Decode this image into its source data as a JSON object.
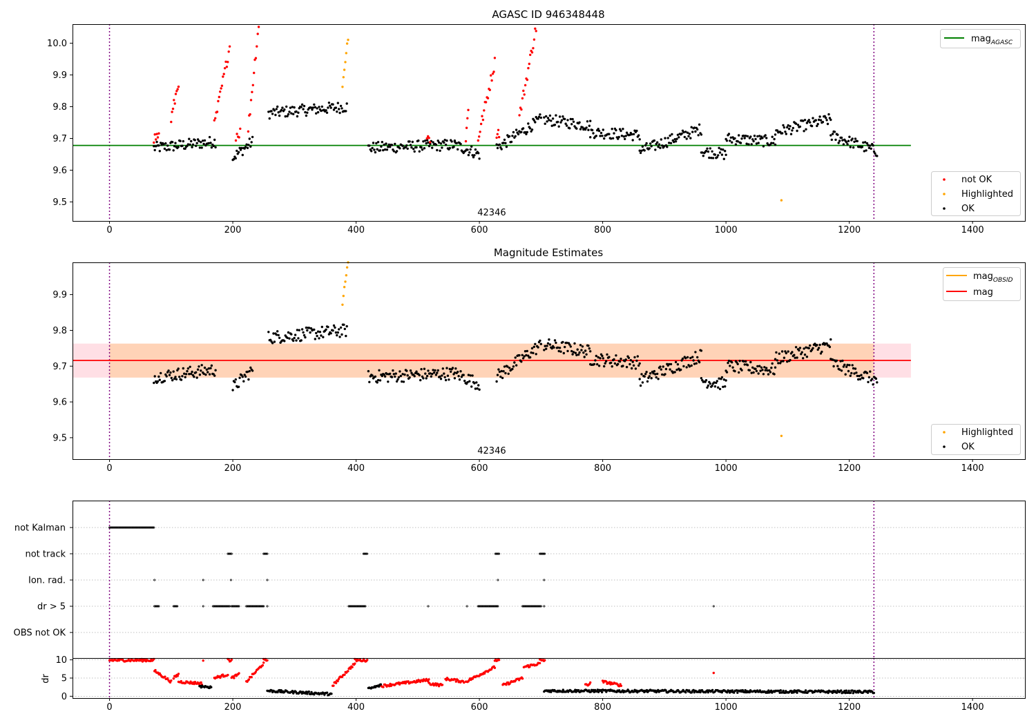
{
  "chart_data": [
    {
      "type": "scatter",
      "title": "AGASC ID 946348448",
      "xlim": [
        -60,
        1485
      ],
      "ylim": [
        9.44,
        10.06
      ],
      "x_ticks": [
        0,
        200,
        400,
        600,
        800,
        1000,
        1200,
        1400
      ],
      "y_ticks": [
        9.5,
        9.6,
        9.7,
        9.8,
        9.9,
        10.0
      ],
      "y_tick_labels": [
        "9.5",
        "9.6",
        "9.7",
        "9.8",
        "9.9",
        "10.0"
      ],
      "obsid_label": "42346",
      "obsid_label_x": 620,
      "vlines_x": [
        0,
        1240
      ],
      "hline": {
        "name": "mag_AGASC",
        "y": 9.678,
        "x_range": [
          -60,
          1300
        ],
        "color": "#008000"
      },
      "legend_lines": [
        {
          "label": "mag",
          "sub": "AGASC",
          "color": "#008000"
        }
      ],
      "legend_points": [
        {
          "label": "not OK",
          "color": "#ff0000"
        },
        {
          "label": "Highlighted",
          "color": "#ffa500"
        },
        {
          "label": "OK",
          "color": "#000000"
        }
      ],
      "series": [
        {
          "name": "OK",
          "color": "#000000",
          "segments": [
            {
              "x": [
                72,
                172
              ],
              "y0": 9.67,
              "y1": 9.69
            },
            {
              "x": [
                200,
                232
              ],
              "y0": 9.64,
              "y1": 9.69
            },
            {
              "x": [
                258,
                385
              ],
              "y0": 9.78,
              "y1": 9.8
            },
            {
              "x": [
                420,
                560
              ],
              "y0": 9.67,
              "y1": 9.68
            },
            {
              "x": [
                560,
                600
              ],
              "y0": 9.68,
              "y1": 9.65
            },
            {
              "x": [
                628,
                700
              ],
              "y0": 9.67,
              "y1": 9.76
            },
            {
              "x": [
                705,
                780
              ],
              "y0": 9.76,
              "y1": 9.74
            },
            {
              "x": [
                780,
                860
              ],
              "y0": 9.72,
              "y1": 9.71
            },
            {
              "x": [
                860,
                960
              ],
              "y0": 9.66,
              "y1": 9.73
            },
            {
              "x": [
                960,
                1000
              ],
              "y0": 9.66,
              "y1": 9.65
            },
            {
              "x": [
                1000,
                1080
              ],
              "y0": 9.7,
              "y1": 9.69
            },
            {
              "x": [
                1080,
                1170
              ],
              "y0": 9.72,
              "y1": 9.76
            },
            {
              "x": [
                1170,
                1245
              ],
              "y0": 9.71,
              "y1": 9.66
            }
          ]
        },
        {
          "name": "not OK",
          "color": "#ff0000",
          "segments": [
            {
              "x": [
                72,
                80
              ],
              "y0": 9.7,
              "y1": 9.71
            },
            {
              "x": [
                100,
                112
              ],
              "y0": 9.76,
              "y1": 9.88
            },
            {
              "x": [
                170,
                195
              ],
              "y0": 9.74,
              "y1": 9.99
            },
            {
              "x": [
                205,
                212
              ],
              "y0": 9.71,
              "y1": 9.72
            },
            {
              "x": [
                225,
                242
              ],
              "y0": 9.73,
              "y1": 10.06
            },
            {
              "x": [
                515,
                520
              ],
              "y0": 9.7,
              "y1": 9.7
            },
            {
              "x": [
                578,
                582
              ],
              "y0": 9.7,
              "y1": 9.79
            },
            {
              "x": [
                598,
                625
              ],
              "y0": 9.7,
              "y1": 9.94
            },
            {
              "x": [
                628,
                632
              ],
              "y0": 9.72,
              "y1": 9.72
            },
            {
              "x": [
                665,
                692
              ],
              "y0": 9.77,
              "y1": 10.05
            }
          ]
        },
        {
          "name": "Highlighted",
          "color": "#ffa500",
          "segments": [
            {
              "x": [
                378,
                387
              ],
              "y0": 9.86,
              "y1": 10.01
            },
            {
              "x": [
                1090,
                1090
              ],
              "y0": 9.505,
              "y1": 9.505
            }
          ]
        }
      ]
    },
    {
      "type": "scatter",
      "title": "Magnitude Estimates",
      "xlim": [
        -60,
        1485
      ],
      "ylim": [
        9.44,
        9.99
      ],
      "x_ticks": [
        0,
        200,
        400,
        600,
        800,
        1000,
        1200,
        1400
      ],
      "y_ticks": [
        9.5,
        9.6,
        9.7,
        9.8,
        9.9
      ],
      "y_tick_labels": [
        "9.5",
        "9.6",
        "9.7",
        "9.8",
        "9.9"
      ],
      "obsid_label": "42346",
      "obsid_label_x": 620,
      "vlines_x": [
        0,
        1240
      ],
      "mag_band": {
        "x_range": [
          -60,
          1300
        ],
        "y": [
          9.668,
          9.763
        ],
        "color": "#ffc0cb"
      },
      "mag_obsid_band": {
        "x_range": [
          0,
          1240
        ],
        "y": [
          9.668,
          9.763
        ],
        "color": "#ffa500"
      },
      "hline": {
        "name": "mag",
        "y": 9.716,
        "x_range": [
          -60,
          1300
        ],
        "color": "#ff0000"
      },
      "legend_lines": [
        {
          "label": "mag",
          "sub": "OBSID",
          "color": "#ffa500"
        },
        {
          "label": "mag",
          "sub": "",
          "color": "#ff0000"
        }
      ],
      "legend_points": [
        {
          "label": "Highlighted",
          "color": "#ffa500"
        },
        {
          "label": "OK",
          "color": "#000000"
        }
      ],
      "series": [
        {
          "name": "OK",
          "color": "#000000",
          "segments": [
            {
              "x": [
                72,
                172
              ],
              "y0": 9.67,
              "y1": 9.69
            },
            {
              "x": [
                200,
                232
              ],
              "y0": 9.64,
              "y1": 9.69
            },
            {
              "x": [
                258,
                385
              ],
              "y0": 9.78,
              "y1": 9.8
            },
            {
              "x": [
                420,
                560
              ],
              "y0": 9.67,
              "y1": 9.68
            },
            {
              "x": [
                560,
                600
              ],
              "y0": 9.68,
              "y1": 9.65
            },
            {
              "x": [
                628,
                700
              ],
              "y0": 9.67,
              "y1": 9.76
            },
            {
              "x": [
                705,
                780
              ],
              "y0": 9.76,
              "y1": 9.74
            },
            {
              "x": [
                780,
                860
              ],
              "y0": 9.72,
              "y1": 9.71
            },
            {
              "x": [
                860,
                960
              ],
              "y0": 9.66,
              "y1": 9.73
            },
            {
              "x": [
                960,
                1000
              ],
              "y0": 9.66,
              "y1": 9.65
            },
            {
              "x": [
                1000,
                1080
              ],
              "y0": 9.7,
              "y1": 9.69
            },
            {
              "x": [
                1080,
                1170
              ],
              "y0": 9.72,
              "y1": 9.76
            },
            {
              "x": [
                1170,
                1245
              ],
              "y0": 9.71,
              "y1": 9.66
            }
          ]
        },
        {
          "name": "Highlighted",
          "color": "#ffa500",
          "segments": [
            {
              "x": [
                378,
                387
              ],
              "y0": 9.86,
              "y1": 9.99
            },
            {
              "x": [
                1090,
                1090
              ],
              "y0": 9.505,
              "y1": 9.505
            }
          ]
        }
      ]
    },
    {
      "type": "scatter",
      "title": "",
      "xlim": [
        -60,
        1485
      ],
      "categories": [
        "not Kalman",
        "not track",
        "Ion. rad.",
        "dr > 5",
        "OBS not OK"
      ],
      "vlines_x": [
        0,
        1240
      ],
      "flags": [
        {
          "category": "not Kalman",
          "ranges": [
            [
              0,
              72
            ]
          ]
        },
        {
          "category": "not track",
          "ranges": [
            [
              192,
              198
            ],
            [
              250,
              256
            ],
            [
              412,
              418
            ],
            [
              626,
              632
            ],
            [
              698,
              706
            ]
          ]
        },
        {
          "category": "Ion. rad.",
          "ranges": [
            [
              73,
              73
            ],
            [
              152,
              152
            ],
            [
              197,
              197
            ],
            [
              256,
              256
            ],
            [
              630,
              630
            ],
            [
              705,
              705
            ]
          ]
        },
        {
          "category": "dr > 5",
          "ranges": [
            [
              73,
              80
            ],
            [
              104,
              110
            ],
            [
              152,
              152
            ],
            [
              168,
              195
            ],
            [
              198,
              210
            ],
            [
              222,
              250
            ],
            [
              256,
              256
            ],
            [
              388,
              415
            ],
            [
              517,
              517
            ],
            [
              580,
              580
            ],
            [
              598,
              630
            ],
            [
              670,
              700
            ],
            [
              705,
              705
            ],
            [
              980,
              980
            ]
          ]
        },
        {
          "category": "OBS not OK",
          "ranges": []
        }
      ]
    },
    {
      "type": "scatter",
      "title": "",
      "ylabel": "dr",
      "xlim": [
        -60,
        1485
      ],
      "ylim": [
        -0.5,
        10.5
      ],
      "x_ticks": [
        0,
        200,
        400,
        600,
        800,
        1000,
        1200,
        1400
      ],
      "y_ticks": [
        0,
        5,
        10
      ],
      "y_tick_labels": [
        "0",
        "5",
        "10"
      ],
      "vlines_x": [
        0,
        1240
      ],
      "series": [
        {
          "name": "dr (flagged)",
          "color": "#ff0000",
          "segments": [
            {
              "x": [
                0,
                72
              ],
              "y0": 9.9,
              "y1": 9.9
            },
            {
              "x": [
                73,
                100
              ],
              "y0": 7,
              "y1": 4
            },
            {
              "x": [
                104,
                112
              ],
              "y0": 5,
              "y1": 6
            },
            {
              "x": [
                112,
                150
              ],
              "y0": 4,
              "y1": 3.5
            },
            {
              "x": [
                152,
                152
              ],
              "y0": 9.8,
              "y1": 9.8
            },
            {
              "x": [
                170,
                192
              ],
              "y0": 5,
              "y1": 6
            },
            {
              "x": [
                192,
                198
              ],
              "y0": 9.9,
              "y1": 9.9
            },
            {
              "x": [
                198,
                210
              ],
              "y0": 5,
              "y1": 6
            },
            {
              "x": [
                222,
                250
              ],
              "y0": 4,
              "y1": 9
            },
            {
              "x": [
                250,
                256
              ],
              "y0": 9.9,
              "y1": 9.9
            },
            {
              "x": [
                362,
                398
              ],
              "y0": 3,
              "y1": 9
            },
            {
              "x": [
                398,
                418
              ],
              "y0": 9.9,
              "y1": 9.9
            },
            {
              "x": [
                440,
                518
              ],
              "y0": 2.8,
              "y1": 4.5
            },
            {
              "x": [
                518,
                540
              ],
              "y0": 3.5,
              "y1": 3
            },
            {
              "x": [
                545,
                575
              ],
              "y0": 4.8,
              "y1": 4
            },
            {
              "x": [
                578,
                625
              ],
              "y0": 4,
              "y1": 8
            },
            {
              "x": [
                625,
                632
              ],
              "y0": 9.9,
              "y1": 9.9
            },
            {
              "x": [
                638,
                670
              ],
              "y0": 3,
              "y1": 5
            },
            {
              "x": [
                672,
                698
              ],
              "y0": 8,
              "y1": 9
            },
            {
              "x": [
                698,
                706
              ],
              "y0": 9.9,
              "y1": 9.9
            },
            {
              "x": [
                772,
                780
              ],
              "y0": 3,
              "y1": 3.5
            },
            {
              "x": [
                800,
                830
              ],
              "y0": 4,
              "y1": 3
            },
            {
              "x": [
                980,
                980
              ],
              "y0": 6.4,
              "y1": 6.4
            }
          ]
        },
        {
          "name": "dr (OK)",
          "color": "#000000",
          "segments": [
            {
              "x": [
                146,
                165
              ],
              "y0": 2.8,
              "y1": 2.5
            },
            {
              "x": [
                256,
                360
              ],
              "y0": 1.5,
              "y1": 0.6
            },
            {
              "x": [
                420,
                440
              ],
              "y0": 2,
              "y1": 3
            },
            {
              "x": [
                705,
                1240
              ],
              "y0": 1.5,
              "y1": 1.2
            }
          ]
        }
      ]
    }
  ]
}
